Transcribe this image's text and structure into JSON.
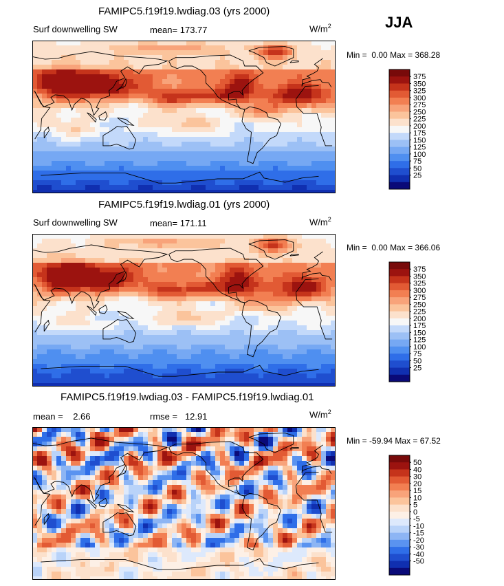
{
  "season": "JJA",
  "colors": {
    "abs": [
      "#0a0a78",
      "#102fb0",
      "#1f4ecf",
      "#2f6ee8",
      "#4f8ff0",
      "#76a8f3",
      "#9cc0f5",
      "#c3d9fa",
      "#f7f7f7",
      "#fce1cc",
      "#fbc49c",
      "#f8a37a",
      "#f27f52",
      "#e25a34",
      "#c5331b",
      "#9c130f",
      "#780a0a"
    ],
    "diff": [
      "#0a0a78",
      "#102fb0",
      "#1f4ecf",
      "#2f6ee8",
      "#5a93f0",
      "#8db5f4",
      "#b9d3f9",
      "#dde9fc",
      "#fdf0e6",
      "#fce1cc",
      "#fbc49c",
      "#f8a37a",
      "#f27f52",
      "#e25a34",
      "#c5331b",
      "#9c130f",
      "#780a0a"
    ]
  },
  "panels": [
    {
      "title": "FAMIPC5.f19f19.lwdiag.03 (yrs 2000)",
      "variable": "Surf downwelling SW",
      "stat1_label": "mean=",
      "stat1_value": "173.77",
      "units_base": "W/m",
      "units_exp": "2",
      "min_label": "Min =",
      "min_value": "0.00",
      "max_label": "Max =",
      "max_value": "368.28",
      "colorbar_levels": [
        "375",
        "350",
        "325",
        "300",
        "275",
        "250",
        "225",
        "200",
        "175",
        "150",
        "125",
        "100",
        "75",
        "50",
        "25"
      ]
    },
    {
      "title": "FAMIPC5.f19f19.lwdiag.01 (yrs 2000)",
      "variable": "Surf downwelling SW",
      "stat1_label": "mean=",
      "stat1_value": "171.11",
      "units_base": "W/m",
      "units_exp": "2",
      "min_label": "Min =",
      "min_value": "0.00",
      "max_label": "Max =",
      "max_value": "366.06",
      "colorbar_levels": [
        "375",
        "350",
        "325",
        "300",
        "275",
        "250",
        "225",
        "200",
        "175",
        "150",
        "125",
        "100",
        "75",
        "50",
        "25"
      ]
    },
    {
      "title": "FAMIPC5.f19f19.lwdiag.03 - FAMIPC5.f19f19.lwdiag.01",
      "stat1_label": "mean =",
      "stat1_value": "2.66",
      "stat2_label": "rmse =",
      "stat2_value": "12.91",
      "units_base": "W/m",
      "units_exp": "2",
      "min_label": "Min =",
      "min_value": "-59.94",
      "max_label": "Max =",
      "max_value": "67.52",
      "colorbar_levels": [
        "50",
        "40",
        "30",
        "20",
        "15",
        "10",
        "5",
        "0",
        "-5",
        "-10",
        "-15",
        "-20",
        "-30",
        "-40",
        "-50"
      ]
    }
  ]
}
